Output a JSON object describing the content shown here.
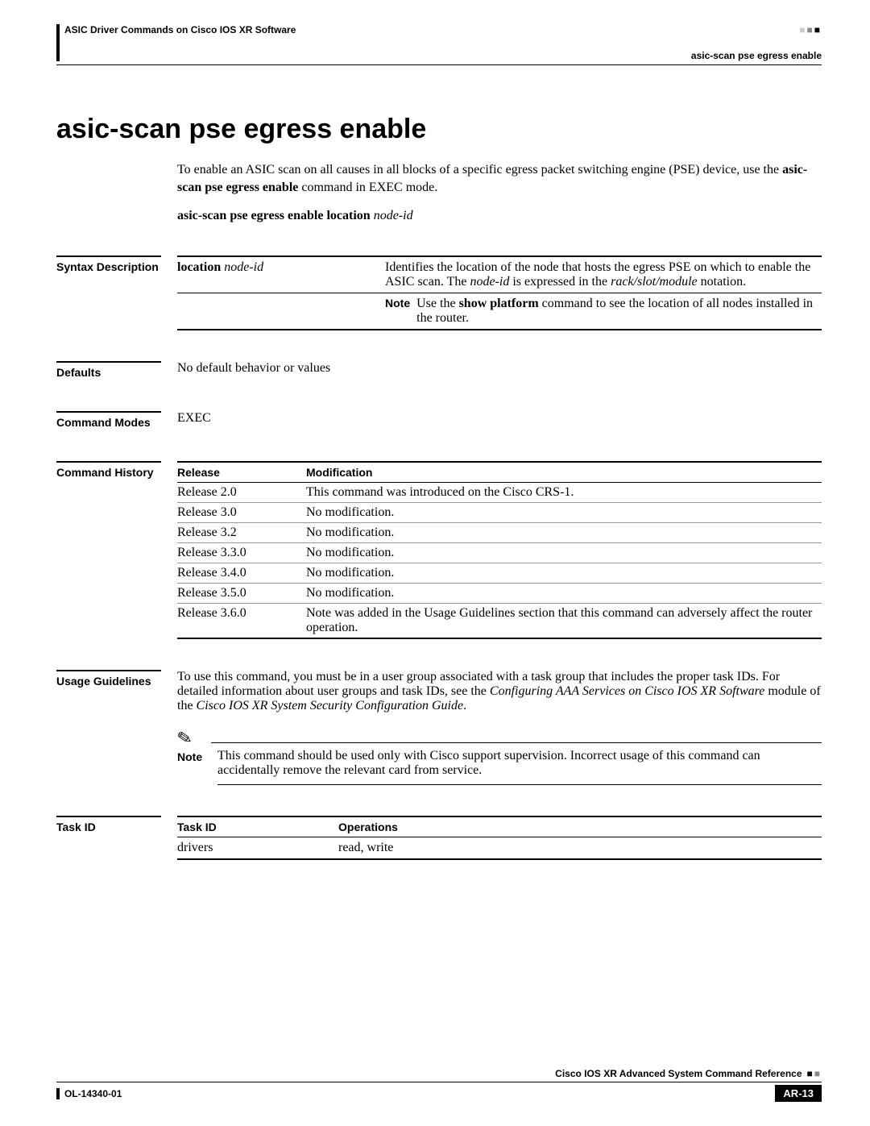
{
  "header": {
    "left": "ASIC Driver Commands on Cisco IOS XR Software",
    "right": "asic-scan pse egress enable"
  },
  "title": "asic-scan pse egress enable",
  "intro": {
    "para1_pre": "To enable an ASIC scan on all causes in all blocks of a specific egress packet switching engine (PSE) device, use the ",
    "para1_bold": "asic-scan pse egress enable",
    "para1_post": " command in EXEC mode.",
    "synopsis_bold": "asic-scan pse egress enable location",
    "synopsis_ital": " node-id"
  },
  "labels": {
    "syntax": "Syntax Description",
    "defaults": "Defaults",
    "modes": "Command Modes",
    "history": "Command History",
    "usage": "Usage Guidelines",
    "taskid": "Task ID",
    "note": "Note"
  },
  "syntax": {
    "keyword": "location",
    "arg": " node-id",
    "desc_pre": "Identifies the location of the node that hosts the egress PSE on which to enable the ASIC scan. The ",
    "desc_ital1": "node-id",
    "desc_mid": " is expressed in the ",
    "desc_ital2": "rack/slot/module",
    "desc_post": " notation.",
    "note_pre": "Use the ",
    "note_bold": "show platform",
    "note_post": " command to see the location of all nodes installed in the router."
  },
  "defaults_text": "No default behavior or values",
  "modes_text": "EXEC",
  "history": {
    "h_release": "Release",
    "h_mod": "Modification",
    "rows": [
      {
        "rel": "Release 2.0",
        "mod": "This command was introduced on the Cisco CRS-1."
      },
      {
        "rel": "Release 3.0",
        "mod": "No modification."
      },
      {
        "rel": "Release 3.2",
        "mod": "No modification."
      },
      {
        "rel": "Release 3.3.0",
        "mod": "No modification."
      },
      {
        "rel": "Release 3.4.0",
        "mod": "No modification."
      },
      {
        "rel": "Release 3.5.0",
        "mod": "No modification."
      },
      {
        "rel": "Release 3.6.0",
        "mod": "Note was added in the Usage Guidelines section that this command can adversely affect the router operation."
      }
    ]
  },
  "usage": {
    "p1_pre": "To use this command, you must be in a user group associated with a task group that includes the proper task IDs. For detailed information about user groups and task IDs, see the ",
    "p1_i1": "Configuring AAA Services on Cisco IOS XR Software",
    "p1_mid": " module of the ",
    "p1_i2": "Cisco IOS XR System Security Configuration Guide",
    "p1_post": ".",
    "note": "This command should be used only with Cisco support supervision. Incorrect usage of this command can accidentally remove the relevant card from service."
  },
  "task": {
    "h_id": "Task ID",
    "h_ops": "Operations",
    "row_id": "drivers",
    "row_ops": "read, write"
  },
  "footer": {
    "title": "Cisco IOS XR Advanced System Command Reference",
    "doc": "OL-14340-01",
    "page": "AR-13"
  }
}
